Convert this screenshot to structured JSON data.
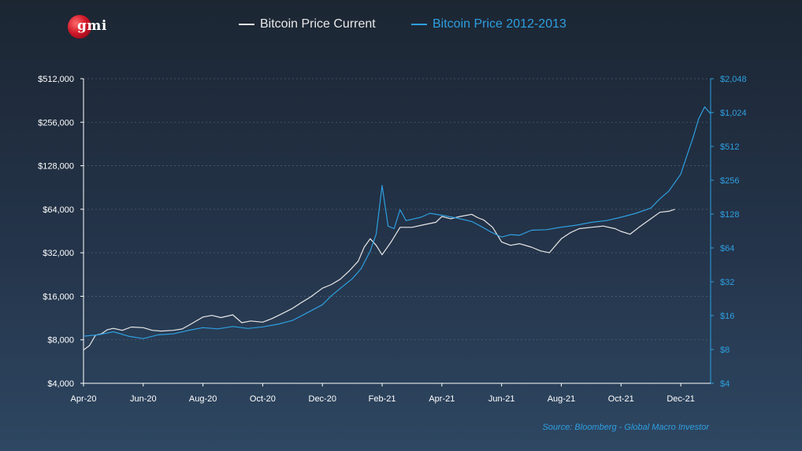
{
  "logo": {
    "text": "gmi"
  },
  "legend": {
    "current": "Bitcoin Price Current",
    "historical": "Bitcoin Price 2012-2013"
  },
  "source": "Source: Bloomberg - Global Macro Investor",
  "colors": {
    "current": "#e8e8e8",
    "historical": "#2e9fe0",
    "grid": "#5d7288"
  },
  "chart_data": {
    "type": "line",
    "title": "",
    "grid": true,
    "legend_position": "top",
    "x_axis": {
      "tick_labels": [
        "Apr-20",
        "Jun-20",
        "Aug-20",
        "Oct-20",
        "Dec-20",
        "Feb-21",
        "Apr-21",
        "Jun-21",
        "Aug-21",
        "Oct-21",
        "Dec-21"
      ],
      "range": [
        0,
        21
      ]
    },
    "y_left": {
      "scale": "log2",
      "range": [
        4000,
        512000
      ],
      "tick_values": [
        4000,
        8000,
        16000,
        32000,
        64000,
        128000,
        256000,
        512000
      ],
      "tick_labels": [
        "$4,000",
        "$8,000",
        "$16,000",
        "$32,000",
        "$64,000",
        "$128,000",
        "$256,000",
        "$512,000"
      ]
    },
    "y_right": {
      "scale": "log2",
      "range": [
        4,
        2048
      ],
      "tick_values": [
        4,
        8,
        16,
        32,
        64,
        128,
        256,
        512,
        1024,
        2048
      ],
      "tick_labels": [
        "$4",
        "$8",
        "$16",
        "$32",
        "$64",
        "$128",
        "$256",
        "$512",
        "$1,024",
        "$2,048"
      ]
    },
    "series": [
      {
        "name": "Bitcoin Price Current",
        "axis": "left",
        "x": [
          0,
          0.2,
          0.4,
          0.6,
          0.8,
          1.0,
          1.3,
          1.6,
          2.0,
          2.3,
          2.6,
          3.0,
          3.3,
          3.6,
          4.0,
          4.3,
          4.6,
          5.0,
          5.3,
          5.6,
          6.0,
          6.3,
          6.6,
          7.0,
          7.3,
          7.6,
          8.0,
          8.3,
          8.6,
          8.9,
          9.2,
          9.4,
          9.6,
          9.8,
          10.0,
          10.3,
          10.6,
          11.0,
          11.4,
          11.8,
          12.0,
          12.3,
          12.6,
          13.0,
          13.2,
          13.4,
          13.7,
          14.0,
          14.3,
          14.6,
          15.0,
          15.3,
          15.6,
          16.0,
          16.3,
          16.6,
          17.0,
          17.4,
          17.8,
          18.0,
          18.3,
          18.6,
          19.0,
          19.3,
          19.6,
          19.8
        ],
        "values": [
          6800,
          7300,
          8600,
          8800,
          9400,
          9600,
          9300,
          9800,
          9700,
          9300,
          9200,
          9300,
          9500,
          10300,
          11500,
          11800,
          11400,
          11900,
          10500,
          10800,
          10600,
          11200,
          12000,
          13200,
          14500,
          15800,
          18200,
          19300,
          21000,
          24000,
          28000,
          35000,
          40000,
          36000,
          31000,
          38000,
          48000,
          48000,
          50000,
          52000,
          57000,
          55000,
          57000,
          59000,
          56000,
          54000,
          48000,
          38000,
          36000,
          37000,
          35000,
          33000,
          32000,
          40000,
          44000,
          47000,
          48000,
          49000,
          47000,
          45000,
          43000,
          48000,
          55000,
          61000,
          62000,
          64000
        ]
      },
      {
        "name": "Bitcoin Price 2012-2013",
        "axis": "right",
        "x": [
          0,
          0.5,
          1.0,
          1.5,
          2.0,
          2.5,
          3.0,
          3.5,
          4.0,
          4.5,
          5.0,
          5.5,
          6.0,
          6.5,
          7.0,
          7.5,
          8.0,
          8.3,
          8.6,
          9.0,
          9.3,
          9.6,
          9.8,
          10.0,
          10.2,
          10.4,
          10.6,
          10.8,
          11.0,
          11.3,
          11.6,
          12.0,
          12.5,
          13.0,
          13.3,
          13.6,
          14.0,
          14.3,
          14.6,
          15.0,
          15.5,
          16.0,
          16.5,
          17.0,
          17.5,
          18.0,
          18.5,
          19.0,
          19.3,
          19.6,
          20.0,
          20.2,
          20.4,
          20.6,
          20.8,
          21.0
        ],
        "values": [
          10.5,
          10.8,
          11.5,
          10.5,
          10.0,
          10.8,
          11.0,
          11.8,
          12.5,
          12.2,
          12.8,
          12.3,
          12.7,
          13.4,
          14.5,
          17.0,
          20.0,
          24.0,
          28.0,
          34.0,
          42.0,
          60.0,
          85.0,
          230.0,
          100.0,
          95.0,
          140.0,
          112.0,
          115.0,
          120.0,
          130.0,
          125.0,
          118.0,
          110.0,
          100.0,
          90.0,
          80.0,
          84.0,
          83.0,
          92.0,
          93.0,
          98.0,
          102.0,
          108.0,
          112.0,
          120.0,
          130.0,
          145.0,
          175.0,
          205.0,
          290.0,
          420.0,
          600.0,
          900.0,
          1150.0,
          1000.0
        ]
      }
    ]
  }
}
